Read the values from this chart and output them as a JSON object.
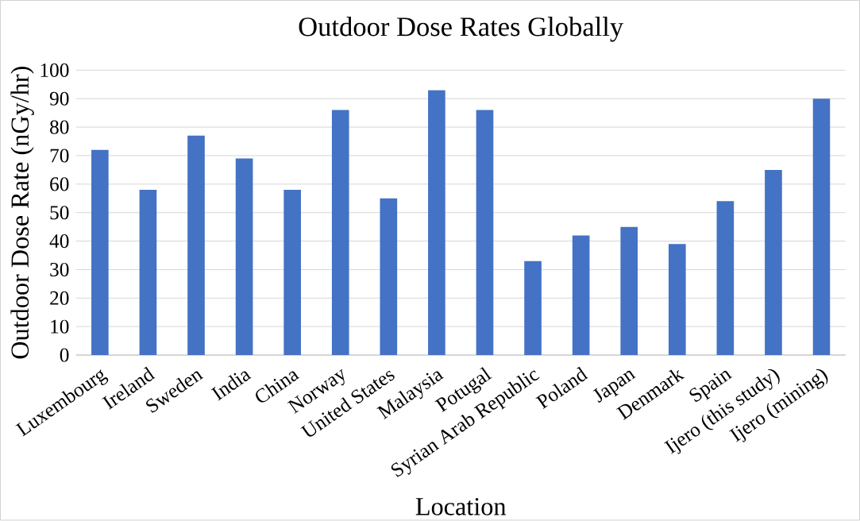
{
  "chart_data": {
    "type": "bar",
    "title": "Outdoor Dose Rates Globally",
    "xlabel": "Location",
    "ylabel": "Outdoor Dose Rate (nGy/hr)",
    "categories": [
      "Luxembourg",
      "Ireland",
      "Sweden",
      "India",
      "China",
      "Norway",
      "United States",
      "Malaysia",
      "Potugal",
      "Syrian Arab Republic",
      "Poland",
      "Japan",
      "Denmark",
      "Spain",
      "Ijero (this study)",
      "Ijero (mining)"
    ],
    "values": [
      72,
      58,
      77,
      69,
      58,
      86,
      55,
      93,
      86,
      33,
      42,
      45,
      39,
      54,
      65,
      90
    ],
    "color": "#4472c4",
    "ylim": [
      0,
      100
    ],
    "yticks": [
      0,
      10,
      20,
      30,
      40,
      50,
      60,
      70,
      80,
      90,
      100
    ],
    "grid": "y"
  }
}
